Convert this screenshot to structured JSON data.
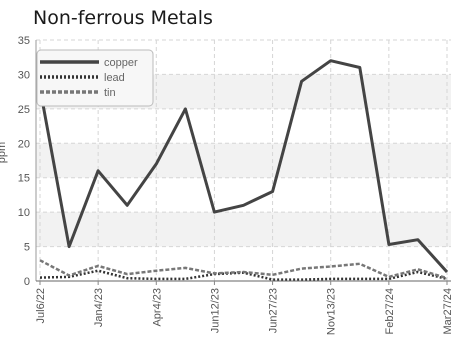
{
  "chart_data": {
    "type": "line",
    "title": "Non-ferrous Metals",
    "ylabel": "ppm",
    "xlabel": "",
    "ylim": [
      0,
      35
    ],
    "yticks": [
      0,
      5,
      10,
      15,
      20,
      25,
      30,
      35
    ],
    "grid": true,
    "legend_position": "top-left",
    "x_tick_labels": [
      "Jul6/22",
      "Jan4/23",
      "Apr4/23",
      "Jun12/23",
      "Jun27/23",
      "Nov13/23",
      "Feb27/24",
      "Mar27/24"
    ],
    "x": [
      "Jul6/22",
      "",
      "Jan4/23",
      "",
      "Apr4/23",
      "",
      "Jun12/23",
      "",
      "Jun27/23",
      "",
      "Nov13/23",
      "",
      "Feb27/24",
      "",
      "Mar27/24"
    ],
    "series": [
      {
        "name": "copper",
        "color": "#444444",
        "style": "solid",
        "values": [
          28,
          5,
          16,
          11,
          17,
          25,
          10,
          11,
          13,
          29,
          32,
          31,
          5.3,
          6,
          1.3
        ]
      },
      {
        "name": "lead",
        "color": "#333333",
        "style": "dotted",
        "values": [
          0.5,
          0.6,
          1.5,
          0.4,
          0.3,
          0.3,
          1,
          1.2,
          0.2,
          0.2,
          0.3,
          0.3,
          0.3,
          1.3,
          0.3
        ]
      },
      {
        "name": "tin",
        "color": "#777777",
        "style": "dashed",
        "values": [
          3,
          0.8,
          2.2,
          1,
          1.5,
          1.9,
          1.1,
          1.3,
          0.9,
          1.8,
          2.1,
          2.5,
          0.6,
          1.7,
          0.4
        ]
      }
    ]
  }
}
